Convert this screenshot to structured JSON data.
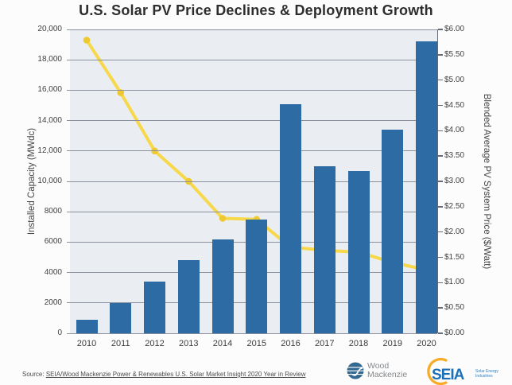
{
  "chart_data": {
    "type": "combo (bar + line, dual axis)",
    "title": "U.S. Solar PV Price Declines & Deployment Growth",
    "categories": [
      "2010",
      "2011",
      "2012",
      "2013",
      "2014",
      "2015",
      "2016",
      "2017",
      "2018",
      "2019",
      "2020"
    ],
    "series": [
      {
        "name": "Installed Capacity (MWdc)",
        "type": "bar",
        "axis": "left",
        "color": "#2d6ba4",
        "values": [
          900,
          2000,
          3400,
          4800,
          6200,
          7500,
          15100,
          11000,
          10700,
          13400,
          19200
        ]
      },
      {
        "name": "Blended Average PV System Price ($/Watt)",
        "type": "line",
        "axis": "right",
        "color": "#f7d84a",
        "marker_color": "#efc931",
        "values": [
          5.79,
          4.75,
          3.6,
          3.0,
          2.27,
          2.25,
          1.7,
          1.64,
          1.6,
          1.4,
          1.25
        ]
      }
    ],
    "left_axis": {
      "label": "Installed Capacity (MWdc)",
      "min": 0,
      "max": 20000,
      "tick_step": 2000,
      "tick_labels": [
        "0",
        "2000",
        "4000",
        "6000",
        "8000",
        "10,000",
        "12,000",
        "14,000",
        "16,000",
        "18,000",
        "20,000"
      ]
    },
    "right_axis": {
      "label": "Blended Average PV System Price ($/Watt)",
      "min": 0,
      "max": 6,
      "tick_step": 0.5,
      "tick_labels": [
        "$0.00",
        "$0.50",
        "$1.00",
        "$1.50",
        "$2.00",
        "$2.50",
        "$3.00",
        "$3.50",
        "$4.00",
        "$4.50",
        "$5.00",
        "$5.50",
        "$6.00"
      ]
    },
    "grid": {
      "horizontal": true,
      "aligned_to": "left axis every 2000",
      "color": "#8a919c"
    },
    "plot_background": "#eaeef3",
    "legend": "none"
  },
  "footer": {
    "source_prefix": "Source:",
    "source_text": "SEIA/Wood Mackenzie Power & Renewables U.S. Solar Market Insight 2020 Year in Review",
    "wood_mackenzie": {
      "line1": "Wood",
      "line2": "Mackenzie",
      "icon_color": "#33688f",
      "text_color": "#84888c"
    },
    "seia": {
      "wordmark": "SEIA",
      "tagline_line1": "Solar Energy",
      "tagline_line2": "Industries",
      "blue": "#1d70b7",
      "arc_color": "#f8ab25"
    }
  }
}
